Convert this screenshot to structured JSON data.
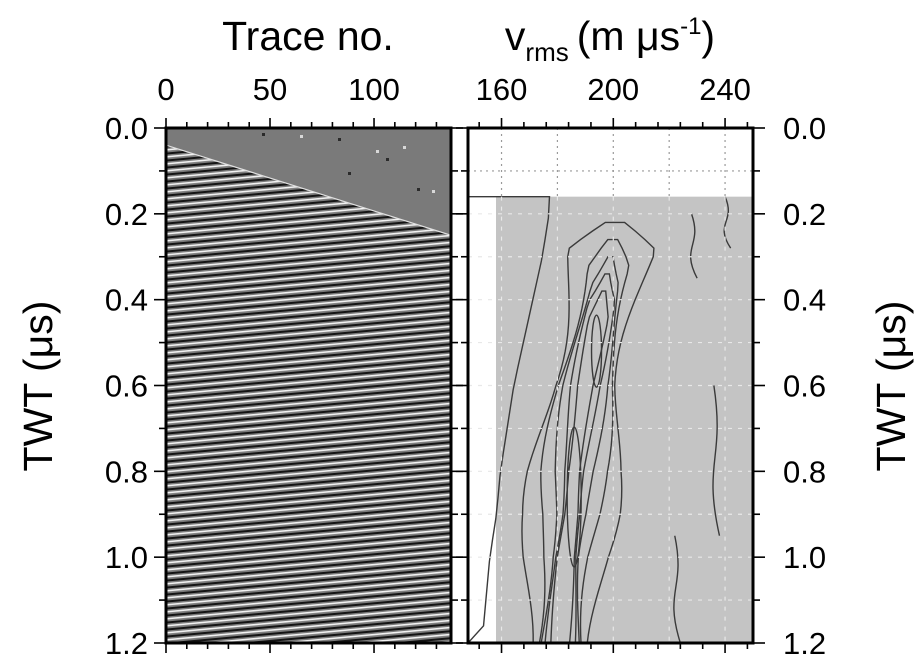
{
  "chart_data": [
    {
      "type": "heatmap",
      "panel": "shot-gather",
      "xlabel": "Trace no.",
      "ylabel": "TWT (μs)",
      "xlim": [
        0,
        137
      ],
      "ylim": [
        1.2,
        0.0
      ],
      "x_ticks": [
        "0",
        "50",
        "100"
      ],
      "x_tick_values": [
        0,
        50,
        100
      ],
      "y_ticks": [
        "0.0",
        "0.2",
        "0.4",
        "0.6",
        "0.8",
        "1.0",
        "1.2"
      ],
      "y_tick_values": [
        0.0,
        0.2,
        0.4,
        0.6,
        0.8,
        1.0,
        1.2
      ],
      "first_arrival": {
        "x": [
          0,
          137
        ],
        "y": [
          0.04,
          0.25
        ]
      },
      "colors": {
        "background": "#7a7a7a",
        "wiggle_dark": "#141414",
        "wiggle_light": "#f2f2f2"
      }
    },
    {
      "type": "heatmap",
      "panel": "velocity-semblance",
      "xlabel_main": "v",
      "xlabel_sub": "rms",
      "xlabel_units": "(m μs",
      "xlabel_exp": "-1",
      "xlabel_close": ")",
      "ylabel": "TWT (μs)",
      "xlim": [
        148,
        250
      ],
      "ylim": [
        1.2,
        0.0
      ],
      "x_ticks": [
        "160",
        "200",
        "240"
      ],
      "x_tick_values": [
        160,
        200,
        240
      ],
      "y_ticks": [
        "0.0",
        "0.2",
        "0.4",
        "0.6",
        "0.8",
        "1.0",
        "1.2"
      ],
      "y_tick_values": [
        0.0,
        0.2,
        0.4,
        0.6,
        0.8,
        1.0,
        1.2
      ],
      "data_start_twt": 0.16,
      "semblance_ridge": {
        "twt": [
          0.2,
          0.3,
          0.4,
          0.5,
          0.6,
          0.7,
          0.8,
          0.9,
          1.0,
          1.1,
          1.2
        ],
        "velocity": [
          201,
          199,
          196,
          193,
          190,
          188,
          186,
          185,
          183,
          182,
          181
        ]
      },
      "semblance_peaks": [
        {
          "twt": 0.52,
          "velocity": 194
        },
        {
          "twt": 0.86,
          "velocity": 186
        }
      ],
      "colors": {
        "low": "#ffffff",
        "background": "#c4c4c4",
        "high": "#2a2a2a"
      }
    }
  ]
}
